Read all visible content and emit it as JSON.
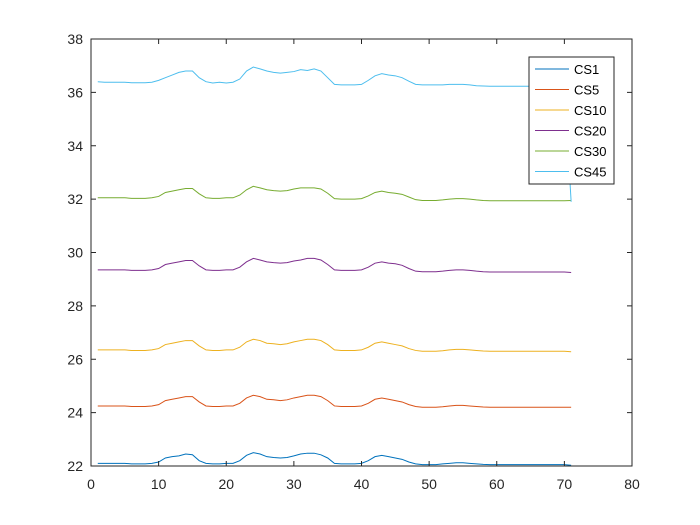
{
  "chart_data": {
    "type": "line",
    "xlim": [
      0,
      80
    ],
    "ylim": [
      22,
      38
    ],
    "x_ticks": [
      "0",
      "10",
      "20",
      "30",
      "40",
      "50",
      "60",
      "70",
      "80"
    ],
    "y_ticks": [
      "22",
      "24",
      "26",
      "28",
      "30",
      "32",
      "34",
      "36",
      "38"
    ],
    "grid": false,
    "legend_position": "top-right",
    "x": [
      1,
      2,
      3,
      4,
      5,
      6,
      7,
      8,
      9,
      10,
      11,
      12,
      13,
      14,
      15,
      16,
      17,
      18,
      19,
      20,
      21,
      22,
      23,
      24,
      25,
      26,
      27,
      28,
      29,
      30,
      31,
      32,
      33,
      34,
      35,
      36,
      37,
      38,
      39,
      40,
      41,
      42,
      43,
      44,
      45,
      46,
      47,
      48,
      49,
      50,
      51,
      52,
      53,
      54,
      55,
      56,
      57,
      58,
      59,
      60,
      61,
      62,
      63,
      64,
      65,
      66,
      67,
      68,
      69,
      70,
      71
    ],
    "series": [
      {
        "name": "CS1",
        "color": "#0072BD",
        "values": [
          22.1,
          22.1,
          22.1,
          22.1,
          22.1,
          22.08,
          22.08,
          22.08,
          22.1,
          22.15,
          22.3,
          22.35,
          22.38,
          22.45,
          22.42,
          22.2,
          22.1,
          22.08,
          22.08,
          22.1,
          22.1,
          22.2,
          22.4,
          22.5,
          22.45,
          22.35,
          22.32,
          22.3,
          22.32,
          22.38,
          22.45,
          22.48,
          22.48,
          22.42,
          22.3,
          22.1,
          22.08,
          22.08,
          22.08,
          22.1,
          22.2,
          22.35,
          22.4,
          22.35,
          22.3,
          22.25,
          22.15,
          22.08,
          22.05,
          22.05,
          22.05,
          22.08,
          22.1,
          22.12,
          22.12,
          22.1,
          22.08,
          22.06,
          22.05,
          22.05,
          22.05,
          22.05,
          22.05,
          22.05,
          22.05,
          22.05,
          22.05,
          22.05,
          22.05,
          22.05,
          22.03
        ]
      },
      {
        "name": "CS5",
        "color": "#D95319",
        "values": [
          24.25,
          24.25,
          24.25,
          24.25,
          24.25,
          24.23,
          24.23,
          24.23,
          24.25,
          24.3,
          24.45,
          24.5,
          24.55,
          24.6,
          24.6,
          24.4,
          24.25,
          24.23,
          24.23,
          24.25,
          24.25,
          24.35,
          24.55,
          24.65,
          24.6,
          24.5,
          24.48,
          24.45,
          24.48,
          24.55,
          24.6,
          24.65,
          24.65,
          24.6,
          24.45,
          24.25,
          24.23,
          24.23,
          24.23,
          24.25,
          24.35,
          24.5,
          24.55,
          24.5,
          24.45,
          24.4,
          24.3,
          24.23,
          24.2,
          24.2,
          24.2,
          24.22,
          24.25,
          24.27,
          24.27,
          24.25,
          24.23,
          24.21,
          24.2,
          24.2,
          24.2,
          24.2,
          24.2,
          24.2,
          24.2,
          24.2,
          24.2,
          24.2,
          24.2,
          24.2,
          24.2
        ]
      },
      {
        "name": "CS10",
        "color": "#EDB120",
        "values": [
          26.35,
          26.35,
          26.35,
          26.35,
          26.35,
          26.33,
          26.33,
          26.33,
          26.35,
          26.4,
          26.55,
          26.6,
          26.65,
          26.7,
          26.7,
          26.5,
          26.35,
          26.33,
          26.33,
          26.35,
          26.35,
          26.45,
          26.65,
          26.75,
          26.7,
          26.6,
          26.58,
          26.55,
          26.58,
          26.65,
          26.7,
          26.75,
          26.75,
          26.7,
          26.55,
          26.35,
          26.33,
          26.33,
          26.33,
          26.35,
          26.45,
          26.6,
          26.65,
          26.6,
          26.55,
          26.5,
          26.4,
          26.33,
          26.3,
          26.3,
          26.3,
          26.32,
          26.35,
          26.37,
          26.37,
          26.35,
          26.33,
          26.31,
          26.3,
          26.3,
          26.3,
          26.3,
          26.3,
          26.3,
          26.3,
          26.3,
          26.3,
          26.3,
          26.3,
          26.3,
          26.28
        ]
      },
      {
        "name": "CS20",
        "color": "#7E2F8E",
        "values": [
          29.35,
          29.35,
          29.35,
          29.35,
          29.35,
          29.33,
          29.33,
          29.33,
          29.35,
          29.4,
          29.55,
          29.6,
          29.65,
          29.7,
          29.7,
          29.5,
          29.35,
          29.33,
          29.33,
          29.35,
          29.35,
          29.45,
          29.65,
          29.78,
          29.72,
          29.65,
          29.62,
          29.6,
          29.62,
          29.68,
          29.72,
          29.78,
          29.78,
          29.72,
          29.55,
          29.35,
          29.33,
          29.33,
          29.33,
          29.35,
          29.45,
          29.6,
          29.65,
          29.6,
          29.58,
          29.52,
          29.4,
          29.3,
          29.28,
          29.28,
          29.28,
          29.3,
          29.33,
          29.35,
          29.35,
          29.33,
          29.3,
          29.28,
          29.27,
          29.27,
          29.27,
          29.27,
          29.27,
          29.27,
          29.27,
          29.27,
          29.27,
          29.27,
          29.27,
          29.27,
          29.25
        ]
      },
      {
        "name": "CS30",
        "color": "#77AC30",
        "values": [
          32.05,
          32.05,
          32.05,
          32.05,
          32.05,
          32.03,
          32.03,
          32.03,
          32.05,
          32.1,
          32.25,
          32.3,
          32.35,
          32.4,
          32.4,
          32.2,
          32.05,
          32.03,
          32.03,
          32.05,
          32.05,
          32.15,
          32.35,
          32.48,
          32.42,
          32.35,
          32.32,
          32.3,
          32.32,
          32.38,
          32.42,
          32.42,
          32.42,
          32.38,
          32.22,
          32.02,
          32.0,
          32.0,
          32.0,
          32.02,
          32.12,
          32.25,
          32.3,
          32.25,
          32.22,
          32.18,
          32.08,
          31.98,
          31.95,
          31.95,
          31.95,
          31.97,
          32.0,
          32.02,
          32.02,
          32.0,
          31.97,
          31.95,
          31.94,
          31.94,
          31.94,
          31.94,
          31.94,
          31.94,
          31.94,
          31.94,
          31.94,
          31.94,
          31.94,
          31.94,
          31.95
        ]
      },
      {
        "name": "CS45",
        "color": "#4DBEEE",
        "values": [
          36.4,
          36.38,
          36.38,
          36.38,
          36.38,
          36.36,
          36.36,
          36.36,
          36.38,
          36.45,
          36.55,
          36.65,
          36.75,
          36.8,
          36.8,
          36.55,
          36.4,
          36.35,
          36.38,
          36.35,
          36.38,
          36.5,
          36.8,
          36.95,
          36.88,
          36.8,
          36.75,
          36.72,
          36.75,
          36.78,
          36.85,
          36.82,
          36.88,
          36.8,
          36.55,
          36.3,
          36.28,
          36.28,
          36.28,
          36.3,
          36.45,
          36.62,
          36.7,
          36.65,
          36.62,
          36.55,
          36.42,
          36.3,
          36.28,
          36.28,
          36.28,
          36.28,
          36.3,
          36.3,
          36.3,
          36.28,
          36.25,
          36.24,
          36.23,
          36.23,
          36.23,
          36.23,
          36.23,
          36.23,
          36.23,
          36.23,
          36.23,
          36.23,
          36.23,
          36.2,
          31.9
        ]
      }
    ]
  }
}
